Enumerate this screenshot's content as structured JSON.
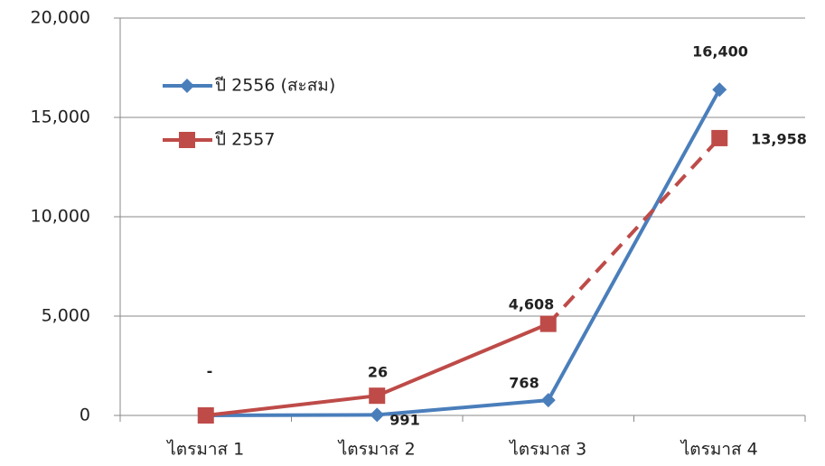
{
  "chart_data": {
    "type": "line",
    "categories": [
      "ไตรมาส 1",
      "ไตรมาส 2",
      "ไตรมาส 3",
      "ไตรมาส 4"
    ],
    "series": [
      {
        "name": "ปี 2556 (สะสม)",
        "color": "#4a7ebb",
        "marker": "diamond",
        "values": [
          0,
          26,
          768,
          16400
        ],
        "value_labels": [
          "-",
          "26",
          "768",
          "16,400"
        ]
      },
      {
        "name": "ปี 2557",
        "color": "#be4b48",
        "marker": "square",
        "values": [
          0,
          991,
          4608,
          13958
        ],
        "value_labels": [
          null,
          "991",
          "4,608",
          "13,958"
        ],
        "dashed_segments": [
          2
        ]
      }
    ],
    "ylim": [
      0,
      20000
    ],
    "yticks": [
      0,
      {
        "value": 5000,
        "label": "5,000"
      },
      {
        "value": 10000,
        "label": "10,000"
      },
      {
        "value": 15000,
        "label": "15,000"
      },
      {
        "value": 20000,
        "label": "20,000"
      }
    ],
    "grid": true,
    "legend": "upper left"
  }
}
